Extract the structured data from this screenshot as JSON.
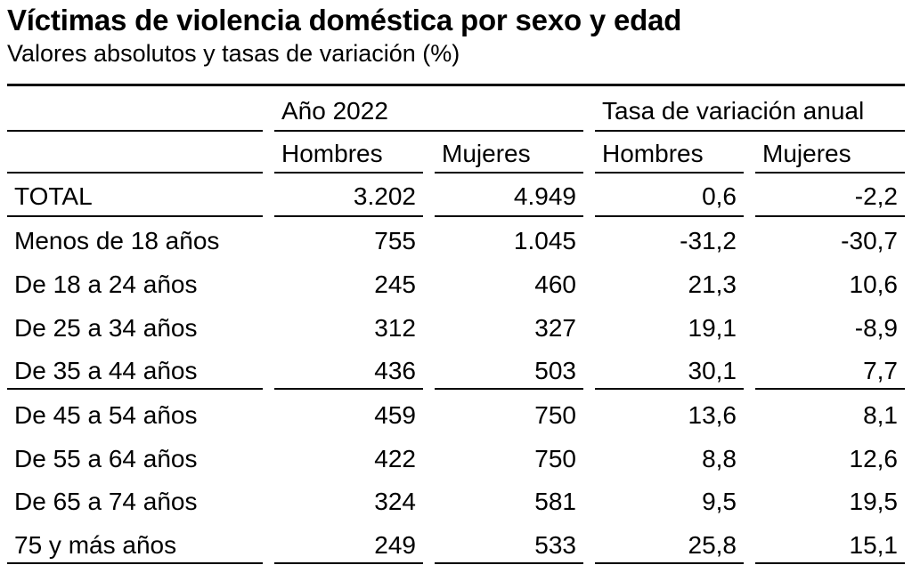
{
  "title": "Víctimas de violencia doméstica por sexo y edad",
  "subtitle": "Valores absolutos y tasas de variación (%)",
  "table": {
    "groups": [
      "Año 2022",
      "Tasa de variación anual"
    ],
    "columns": [
      "Hombres",
      "Mujeres",
      "Hombres",
      "Mujeres"
    ],
    "rows": [
      {
        "label": "TOTAL",
        "values": [
          "3.202",
          "4.949",
          "0,6",
          "-2,2"
        ]
      },
      {
        "label": "Menos de 18 años",
        "values": [
          "755",
          "1.045",
          "-31,2",
          "-30,7"
        ]
      },
      {
        "label": "De 18 a 24 años",
        "values": [
          "245",
          "460",
          "21,3",
          "10,6"
        ]
      },
      {
        "label": "De 25 a 34 años",
        "values": [
          "312",
          "327",
          "19,1",
          "-8,9"
        ]
      },
      {
        "label": "De 35 a 44 años",
        "values": [
          "436",
          "503",
          "30,1",
          "7,7"
        ]
      },
      {
        "label": "De 45 a 54 años",
        "values": [
          "459",
          "750",
          "13,6",
          "8,1"
        ]
      },
      {
        "label": "De 55 a 64 años",
        "values": [
          "422",
          "750",
          "8,8",
          "12,6"
        ]
      },
      {
        "label": "De 65 a 74 años",
        "values": [
          "324",
          "581",
          "9,5",
          "19,5"
        ]
      },
      {
        "label": "75 y más años",
        "values": [
          "249",
          "533",
          "25,8",
          "15,1"
        ]
      }
    ]
  }
}
